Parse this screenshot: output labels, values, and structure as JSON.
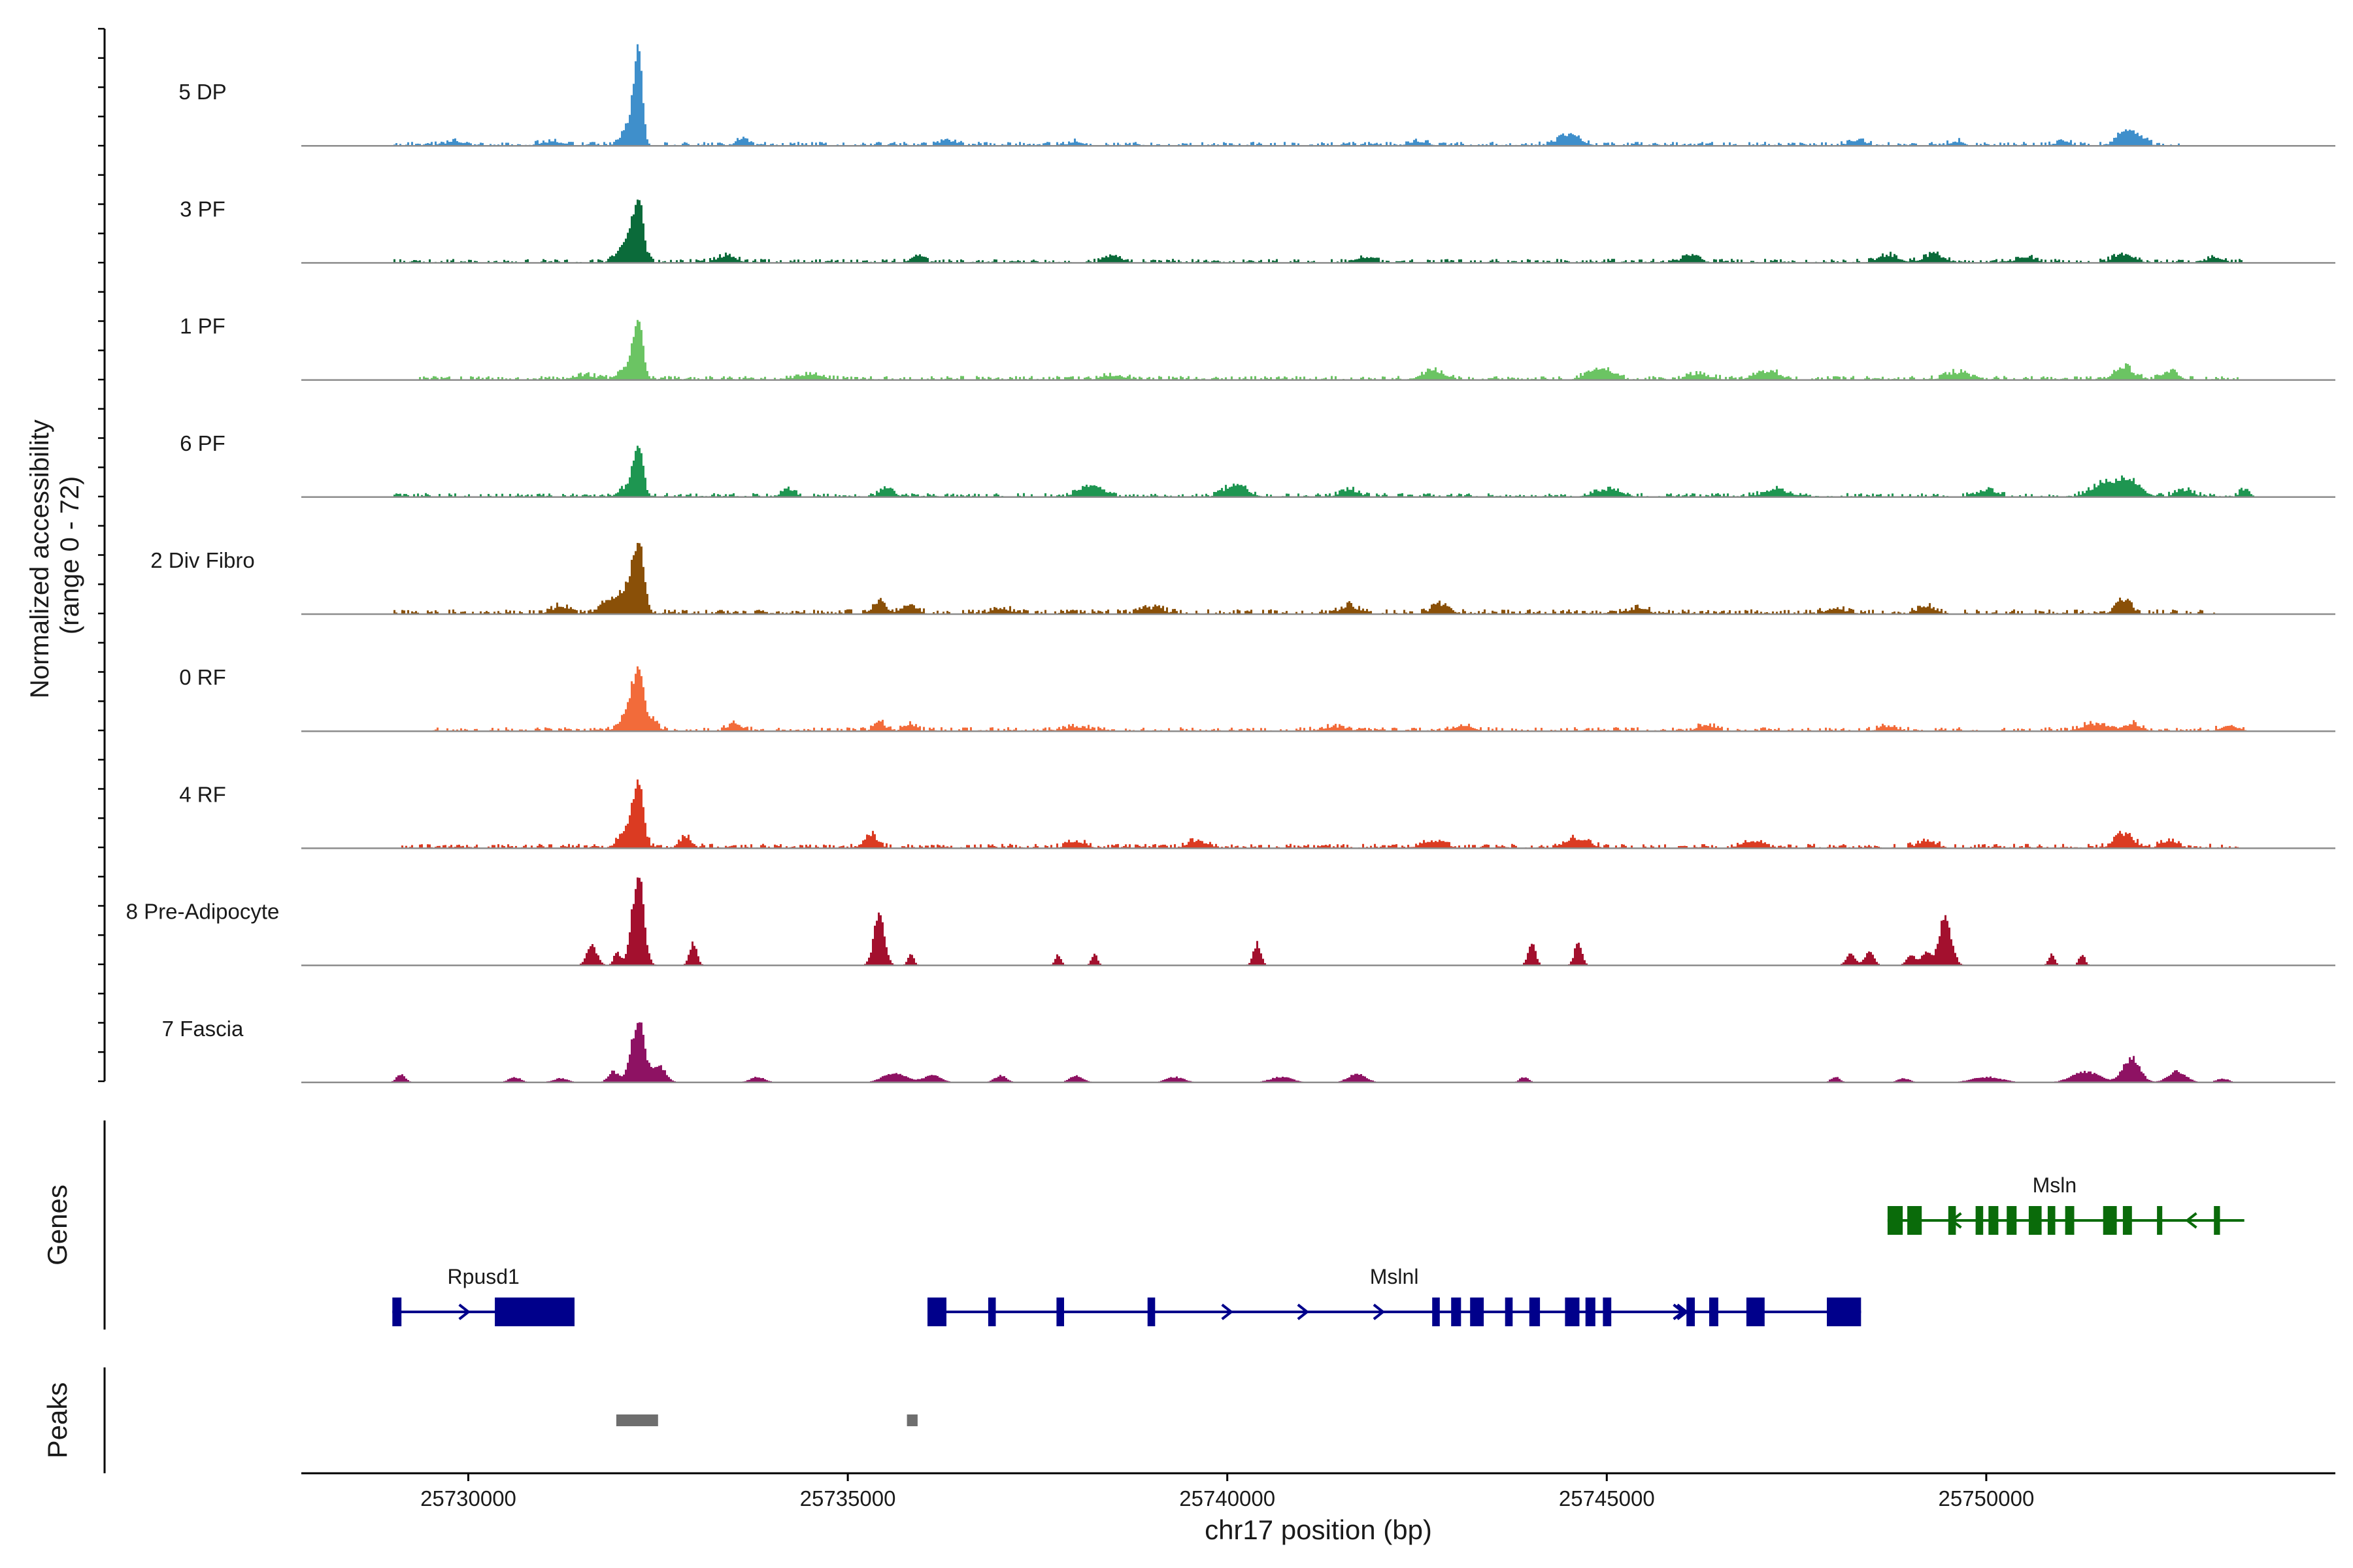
{
  "y_axis_title_line1": "Normalized accessibility",
  "y_axis_title_line2": "(range 0 - 72)",
  "genes_panel_label": "Genes",
  "peaks_panel_label": "Peaks",
  "chart_data": {
    "type": "area",
    "title": "",
    "xlabel": "chr17 position (bp)",
    "ylabel": "Normalized accessibility (range 0 - 72)",
    "xlim": [
      25727800,
      25754600
    ],
    "ylim": [
      0,
      72
    ],
    "x_ticks": [
      25730000,
      25735000,
      25740000,
      25745000,
      25750000
    ],
    "tracks": [
      {
        "name": "5 DP",
        "color": "#3F8FCB",
        "span": [
          25729000,
          25752600
        ],
        "bg": 2.5,
        "peaks": [
          [
            25732220,
            72,
            55
          ],
          [
            25732080,
            12,
            90
          ],
          [
            25729800,
            3,
            120
          ],
          [
            25731100,
            3,
            150
          ],
          [
            25733600,
            5,
            80
          ],
          [
            25736300,
            4,
            100
          ],
          [
            25738000,
            3,
            90
          ],
          [
            25742500,
            3,
            120
          ],
          [
            25744500,
            8,
            140
          ],
          [
            25748300,
            4,
            100
          ],
          [
            25749600,
            3,
            90
          ],
          [
            25751800,
            9,
            100
          ],
          [
            25752000,
            7,
            90
          ],
          [
            25751000,
            3,
            90
          ]
        ]
      },
      {
        "name": "3 PF",
        "color": "#0B6B3A",
        "span": [
          25729000,
          25753400
        ],
        "bg": 2.5,
        "peaks": [
          [
            25732220,
            45,
            70
          ],
          [
            25732050,
            14,
            100
          ],
          [
            25733400,
            5,
            120
          ],
          [
            25735900,
            6,
            80
          ],
          [
            25738500,
            4,
            120
          ],
          [
            25741800,
            4,
            120
          ],
          [
            25746100,
            4,
            120
          ],
          [
            25748700,
            5,
            140
          ],
          [
            25749300,
            6,
            130
          ],
          [
            25751800,
            6,
            130
          ],
          [
            25750500,
            4,
            120
          ],
          [
            25753000,
            3,
            100
          ]
        ]
      },
      {
        "name": "1 PF",
        "color": "#6BC463",
        "span": [
          25729300,
          25753300
        ],
        "bg": 2.5,
        "peaks": [
          [
            25732220,
            42,
            65
          ],
          [
            25732060,
            8,
            100
          ],
          [
            25731500,
            3,
            150
          ],
          [
            25734500,
            4,
            150
          ],
          [
            25738500,
            3,
            150
          ],
          [
            25742700,
            6,
            150
          ],
          [
            25744900,
            8,
            160
          ],
          [
            25747100,
            6,
            160
          ],
          [
            25749600,
            5,
            150
          ],
          [
            25751800,
            9,
            120
          ],
          [
            25752400,
            6,
            110
          ],
          [
            25746200,
            4,
            150
          ]
        ]
      },
      {
        "name": "6 PF",
        "color": "#1E9651",
        "span": [
          25729000,
          25753400
        ],
        "bg": 2.5,
        "peaks": [
          [
            25732220,
            38,
            65
          ],
          [
            25732050,
            6,
            90
          ],
          [
            25734200,
            6,
            80
          ],
          [
            25735500,
            6,
            90
          ],
          [
            25738200,
            8,
            150
          ],
          [
            25740100,
            8,
            150
          ],
          [
            25741600,
            5,
            120
          ],
          [
            25745000,
            5,
            180
          ],
          [
            25747200,
            5,
            150
          ],
          [
            25750000,
            5,
            120
          ],
          [
            25751600,
            10,
            200
          ],
          [
            25751900,
            9,
            140
          ],
          [
            25753400,
            6,
            60
          ],
          [
            25752600,
            5,
            110
          ]
        ]
      },
      {
        "name": "2 Div Fibro",
        "color": "#8A5008",
        "span": [
          25729000,
          25753000
        ],
        "bg": 3,
        "peaks": [
          [
            25732220,
            52,
            75
          ],
          [
            25732030,
            14,
            100
          ],
          [
            25731800,
            8,
            100
          ],
          [
            25731200,
            5,
            120
          ],
          [
            25735400,
            8,
            90
          ],
          [
            25735800,
            7,
            100
          ],
          [
            25737000,
            4,
            120
          ],
          [
            25739000,
            4,
            150
          ],
          [
            25741600,
            6,
            100
          ],
          [
            25742800,
            6,
            120
          ],
          [
            25745400,
            4,
            120
          ],
          [
            25748000,
            4,
            120
          ],
          [
            25751800,
            10,
            100
          ],
          [
            25749200,
            5,
            120
          ]
        ]
      },
      {
        "name": "0 RF",
        "color": "#F26B3A",
        "span": [
          25729500,
          25753400
        ],
        "bg": 2.5,
        "peaks": [
          [
            25732220,
            42,
            70
          ],
          [
            25732080,
            12,
            100
          ],
          [
            25732400,
            8,
            80
          ],
          [
            25733500,
            5,
            100
          ],
          [
            25735400,
            7,
            70
          ],
          [
            25735800,
            5,
            80
          ],
          [
            25738000,
            3,
            150
          ],
          [
            25741400,
            3,
            150
          ],
          [
            25743100,
            4,
            120
          ],
          [
            25746300,
            4,
            120
          ],
          [
            25748700,
            3,
            120
          ],
          [
            25751400,
            5,
            150
          ],
          [
            25751900,
            5,
            120
          ],
          [
            25753200,
            4,
            110
          ]
        ]
      },
      {
        "name": "4 RF",
        "color": "#DB3B22",
        "span": [
          25729100,
          25753300
        ],
        "bg": 2.8,
        "peaks": [
          [
            25732220,
            48,
            70
          ],
          [
            25732050,
            12,
            90
          ],
          [
            25732850,
            8,
            80
          ],
          [
            25735300,
            9,
            90
          ],
          [
            25738000,
            5,
            120
          ],
          [
            25739600,
            5,
            130
          ],
          [
            25742700,
            5,
            150
          ],
          [
            25744600,
            7,
            150
          ],
          [
            25746900,
            5,
            140
          ],
          [
            25749200,
            5,
            120
          ],
          [
            25751800,
            10,
            120
          ],
          [
            25752400,
            5,
            110
          ]
        ]
      },
      {
        "name": "8 Pre-Adipocyte",
        "color": "#A3102E",
        "span": null,
        "bg": 0,
        "peaks": [
          [
            25732220,
            68,
            75
          ],
          [
            25731620,
            14,
            70
          ],
          [
            25731950,
            10,
            45
          ],
          [
            25732950,
            16,
            50
          ],
          [
            25735400,
            36,
            70
          ],
          [
            25735820,
            8,
            40
          ],
          [
            25737760,
            8,
            40
          ],
          [
            25738240,
            8,
            40
          ],
          [
            25740380,
            16,
            50
          ],
          [
            25744000,
            16,
            50
          ],
          [
            25744610,
            16,
            50
          ],
          [
            25748200,
            8,
            60
          ],
          [
            25748450,
            10,
            60
          ],
          [
            25749000,
            8,
            60
          ],
          [
            25749450,
            36,
            80
          ],
          [
            25749200,
            10,
            60
          ],
          [
            25750850,
            8,
            40
          ],
          [
            25751250,
            8,
            40
          ]
        ]
      },
      {
        "name": "7 Fascia",
        "color": "#8E1263",
        "span": null,
        "bg": 0,
        "peaks": [
          [
            25732220,
            46,
            85
          ],
          [
            25732500,
            12,
            90
          ],
          [
            25731900,
            8,
            70
          ],
          [
            25729100,
            6,
            60
          ],
          [
            25730600,
            4,
            80
          ],
          [
            25731200,
            3,
            100
          ],
          [
            25733800,
            4,
            100
          ],
          [
            25735600,
            7,
            150
          ],
          [
            25736100,
            5,
            120
          ],
          [
            25737000,
            5,
            80
          ],
          [
            25738000,
            5,
            90
          ],
          [
            25739300,
            4,
            120
          ],
          [
            25740700,
            4,
            150
          ],
          [
            25741700,
            6,
            120
          ],
          [
            25743900,
            4,
            60
          ],
          [
            25748000,
            4,
            60
          ],
          [
            25748900,
            3,
            80
          ],
          [
            25750000,
            4,
            200
          ],
          [
            25751300,
            8,
            180
          ],
          [
            25751900,
            18,
            110
          ],
          [
            25752500,
            8,
            120
          ],
          [
            25753100,
            3,
            80
          ]
        ]
      }
    ],
    "genes": [
      {
        "name": "Rpusd1",
        "color": "#00008B",
        "row": 2,
        "start": 25729000,
        "end": 25731400,
        "strand": "+",
        "label_pos": 25730200,
        "arrows": [
          25729950
        ],
        "exons": [
          [
            25729000,
            25729120
          ],
          [
            25730350,
            25731400
          ]
        ]
      },
      {
        "name": "Mslnl",
        "color": "#00008B",
        "row": 2,
        "start": 25736050,
        "end": 25748350,
        "strand": "+",
        "label_pos": 25742200,
        "arrows": [
          25740000,
          25741000,
          25742000,
          25745950,
          25746000
        ],
        "exons": [
          [
            25736050,
            25736300
          ],
          [
            25736850,
            25736950
          ],
          [
            25737750,
            25737850
          ],
          [
            25738950,
            25739050
          ],
          [
            25742700,
            25742800
          ],
          [
            25742950,
            25743080
          ],
          [
            25743200,
            25743380
          ],
          [
            25743660,
            25743760
          ],
          [
            25743980,
            25744120
          ],
          [
            25744450,
            25744640
          ],
          [
            25744720,
            25744850
          ],
          [
            25744950,
            25745060
          ],
          [
            25746050,
            25746160
          ],
          [
            25746350,
            25746470
          ],
          [
            25746840,
            25747080
          ],
          [
            25747900,
            25748350
          ]
        ]
      },
      {
        "name": "Msln",
        "color": "#0A6B0A",
        "row": 1,
        "start": 25748700,
        "end": 25753400,
        "strand": "-",
        "label_pos": 25750900,
        "arrows": [
          25749600,
          25752700
        ],
        "exons": [
          [
            25748700,
            25748900
          ],
          [
            25748960,
            25749150
          ],
          [
            25749500,
            25749600
          ],
          [
            25749860,
            25749960
          ],
          [
            25750030,
            25750160
          ],
          [
            25750270,
            25750400
          ],
          [
            25750560,
            25750730
          ],
          [
            25750810,
            25750910
          ],
          [
            25751040,
            25751160
          ],
          [
            25751540,
            25751720
          ],
          [
            25751800,
            25751920
          ],
          [
            25752250,
            25752320
          ],
          [
            25753000,
            25753080
          ]
        ]
      }
    ],
    "peak_regions": [
      [
        25731950,
        25732500
      ],
      [
        25735780,
        25735920
      ]
    ]
  }
}
